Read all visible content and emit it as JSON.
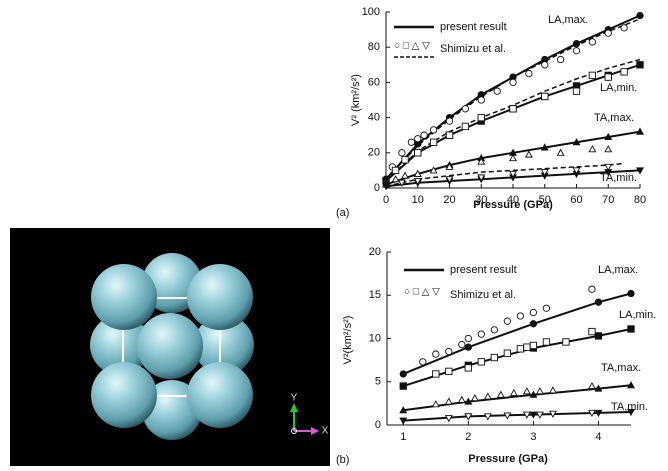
{
  "chart_data": [
    {
      "type": "line",
      "panel_label": "(a)",
      "xlabel": "Pressure (GPa)",
      "ylabel": "V² (km²/s²)",
      "xlim": [
        0,
        80
      ],
      "xticks": [
        0,
        10,
        20,
        30,
        40,
        50,
        60,
        70,
        80
      ],
      "ylim": [
        0,
        100
      ],
      "yticks": [
        0,
        20,
        40,
        60,
        80,
        100
      ],
      "legend": [
        "present result",
        "Shimizu et al."
      ],
      "legend_symbols": "○ □ △ ▽",
      "series": [
        {
          "name": "LA,max.",
          "color": "#111",
          "style": "solid",
          "marker": "circle",
          "filled": true,
          "x": [
            0,
            10,
            20,
            30,
            40,
            50,
            60,
            70,
            80
          ],
          "values": [
            5,
            25,
            40,
            53,
            63,
            73,
            82,
            90,
            98
          ]
        },
        {
          "name": "LA,min.",
          "color": "#111",
          "style": "solid",
          "marker": "square",
          "filled": true,
          "x": [
            0,
            10,
            20,
            30,
            40,
            50,
            60,
            70,
            80
          ],
          "values": [
            4,
            20,
            30,
            38,
            45,
            52,
            58,
            64,
            70
          ]
        },
        {
          "name": "TA,max.",
          "color": "#111",
          "style": "solid",
          "marker": "triangle",
          "filled": true,
          "x": [
            0,
            10,
            20,
            30,
            40,
            50,
            60,
            70,
            80
          ],
          "values": [
            2,
            8,
            13,
            17,
            20,
            23,
            26,
            29,
            32
          ]
        },
        {
          "name": "TA,min.",
          "color": "#111",
          "style": "solid",
          "marker": "down-triangle",
          "filled": true,
          "x": [
            0,
            10,
            20,
            30,
            40,
            50,
            60,
            70,
            80
          ],
          "values": [
            1,
            3,
            4,
            5,
            6,
            7,
            8,
            9,
            10
          ]
        },
        {
          "color": "#111",
          "style": "dashed",
          "x": [
            0,
            10,
            20,
            30,
            40,
            50,
            60,
            70,
            80
          ],
          "values": [
            5,
            24,
            39,
            52,
            63,
            72,
            81,
            89,
            96
          ]
        },
        {
          "color": "#111",
          "style": "dashed",
          "x": [
            0,
            10,
            20,
            30,
            40,
            50,
            60,
            70,
            80
          ],
          "values": [
            4,
            21,
            32,
            40,
            47,
            55,
            62,
            68,
            73
          ]
        },
        {
          "color": "#111",
          "style": "dashed",
          "x": [
            0,
            10,
            20,
            30,
            40,
            50,
            60,
            70,
            75
          ],
          "values": [
            1,
            5,
            7,
            9,
            10,
            11,
            12,
            13,
            14
          ]
        },
        {
          "color": "#111",
          "style": "none",
          "marker": "circle",
          "filled": false,
          "x": [
            2,
            5,
            8,
            10,
            12,
            15,
            20,
            25,
            30,
            35,
            40,
            45,
            50,
            55,
            60,
            65,
            70,
            75
          ],
          "values": [
            12,
            20,
            26,
            28,
            30,
            33,
            38,
            45,
            50,
            55,
            60,
            65,
            70,
            73,
            78,
            83,
            88,
            91
          ]
        },
        {
          "color": "#111",
          "style": "none",
          "marker": "square",
          "filled": false,
          "x": [
            3,
            6,
            10,
            15,
            20,
            25,
            30,
            40,
            50,
            60,
            65,
            70,
            75
          ],
          "values": [
            10,
            16,
            20,
            26,
            30,
            35,
            40,
            45,
            52,
            55,
            64,
            63,
            66
          ]
        },
        {
          "color": "#111",
          "style": "none",
          "marker": "triangle",
          "filled": false,
          "x": [
            3,
            6,
            10,
            15,
            20,
            30,
            40,
            45,
            55,
            65,
            70
          ],
          "values": [
            5,
            7,
            8,
            10,
            12,
            15,
            17,
            19,
            20,
            22,
            22
          ]
        },
        {
          "color": "#111",
          "style": "none",
          "marker": "down-triangle",
          "filled": false,
          "x": [
            5,
            10,
            20,
            30,
            40,
            50,
            60,
            70
          ],
          "values": [
            3,
            4,
            5,
            6,
            8,
            9,
            10,
            12
          ]
        }
      ]
    },
    {
      "type": "line",
      "panel_label": "(b)",
      "xlabel": "Pressure (GPa)",
      "ylabel": "V²(km²/s²)",
      "xlim": [
        0.75,
        4.5
      ],
      "xticks": [
        1,
        2,
        3,
        4
      ],
      "ylim": [
        0,
        20
      ],
      "yticks": [
        0,
        5,
        10,
        15,
        20
      ],
      "legend": [
        "present result",
        "Shimizu et al."
      ],
      "legend_symbols": "○ □ △ ▽",
      "series": [
        {
          "name": "LA,max.",
          "color": "#111",
          "style": "solid",
          "marker": "circle",
          "filled": true,
          "x": [
            1,
            2,
            3,
            4,
            4.5
          ],
          "values": [
            5.9,
            9,
            11.7,
            14.2,
            15.2
          ]
        },
        {
          "name": "LA,min.",
          "color": "#111",
          "style": "solid",
          "marker": "square",
          "filled": true,
          "x": [
            1,
            2,
            3,
            4,
            4.5
          ],
          "values": [
            4.5,
            6.9,
            8.9,
            10.3,
            11.1
          ]
        },
        {
          "name": "TA,max.",
          "color": "#111",
          "style": "solid",
          "marker": "triangle",
          "filled": true,
          "x": [
            1,
            2,
            3,
            4,
            4.5
          ],
          "values": [
            1.7,
            2.7,
            3.5,
            4.2,
            4.6
          ]
        },
        {
          "name": "TA,min.",
          "color": "#111",
          "style": "solid",
          "marker": "down-triangle",
          "filled": true,
          "x": [
            1,
            2,
            3,
            4,
            4.5
          ],
          "values": [
            0.5,
            1.0,
            1.2,
            1.4,
            1.5
          ]
        },
        {
          "color": "#111",
          "style": "none",
          "marker": "circle",
          "filled": false,
          "x": [
            1.3,
            1.5,
            1.7,
            1.9,
            2.0,
            2.2,
            2.4,
            2.6,
            2.8,
            3.0,
            3.2,
            3.9
          ],
          "values": [
            7.3,
            8.2,
            8.5,
            9.3,
            10,
            10.5,
            11,
            12,
            12.6,
            13,
            13.5,
            15.7
          ]
        },
        {
          "color": "#111",
          "style": "none",
          "marker": "square",
          "filled": false,
          "x": [
            1.5,
            1.7,
            2.0,
            2.2,
            2.4,
            2.6,
            2.8,
            2.9,
            3.0,
            3.2,
            3.5,
            3.9
          ],
          "values": [
            5.9,
            6.2,
            6.6,
            7.3,
            7.8,
            8.3,
            8.8,
            9.0,
            9.2,
            9.6,
            9.6,
            10.8
          ]
        },
        {
          "color": "#111",
          "style": "none",
          "marker": "triangle",
          "filled": false,
          "x": [
            1.5,
            1.7,
            1.9,
            2.1,
            2.3,
            2.5,
            2.7,
            2.9,
            3.1,
            3.3,
            3.9
          ],
          "values": [
            2.4,
            2.7,
            2.9,
            3.1,
            3.3,
            3.5,
            3.7,
            3.9,
            3.9,
            4.0,
            4.5
          ]
        },
        {
          "color": "#111",
          "style": "none",
          "marker": "down-triangle",
          "filled": false,
          "x": [
            1.7,
            2.0,
            2.3,
            2.6,
            2.9,
            3.1,
            3.3,
            3.9
          ],
          "values": [
            0.8,
            1.0,
            1.0,
            1.1,
            1.2,
            1.2,
            1.3,
            1.4
          ]
        }
      ]
    }
  ],
  "crystal_image": {
    "axis_labels": [
      "Y",
      "X"
    ]
  }
}
